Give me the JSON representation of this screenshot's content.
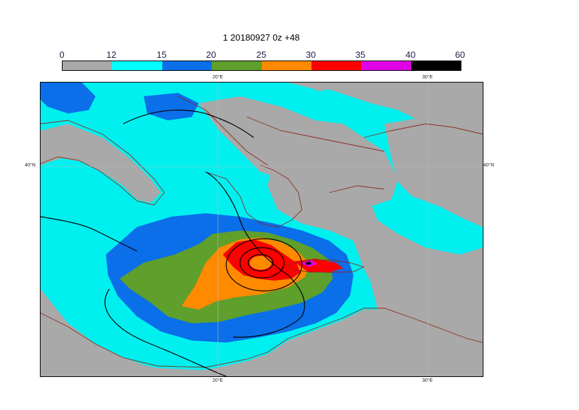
{
  "title": "1 20180927 0z +48",
  "colorbar": {
    "ticks": [
      "0",
      "12",
      "15",
      "20",
      "25",
      "30",
      "35",
      "40",
      "60"
    ],
    "colors": [
      "#a8a8a8",
      "#00ffff",
      "#0a6fe8",
      "#5f9f2c",
      "#ff8a00",
      "#ff0000",
      "#e000e6",
      "#000000"
    ]
  },
  "axes": {
    "lon_top": [
      "20°E",
      "30°E"
    ],
    "lon_bottom": [
      "20°E",
      "30°E"
    ],
    "lat_left": "40°N",
    "lat_right": "40°N"
  },
  "colors": {
    "land": "#a9a9a9",
    "coast": "#8b2a1a",
    "contour": "#000000"
  }
}
